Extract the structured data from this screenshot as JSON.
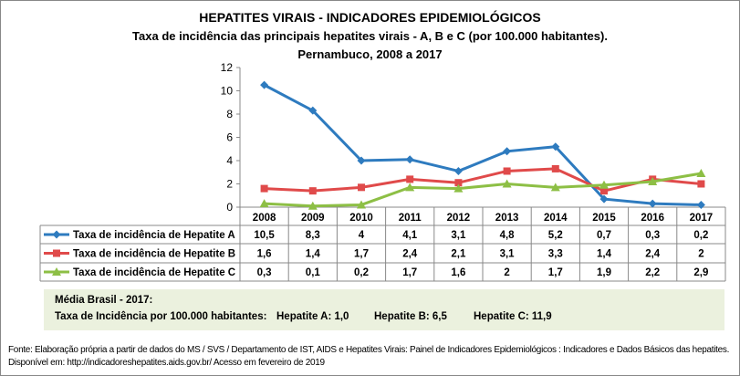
{
  "chart_data": {
    "type": "line",
    "title": "HEPATITES VIRAIS - INDICADORES EPIDEMIOLÓGICOS",
    "subtitle": "Taxa de incidência das principais hepatites virais - A, B e C (por 100.000 habitantes).",
    "subtitle2": "Pernambuco, 2008 a 2017",
    "categories": [
      "2008",
      "2009",
      "2010",
      "2011",
      "2012",
      "2013",
      "2014",
      "2015",
      "2016",
      "2017"
    ],
    "ylim": [
      0,
      12
    ],
    "yticks": [
      0,
      2,
      4,
      6,
      8,
      10,
      12
    ],
    "grid": false,
    "legend": "data-table",
    "series": [
      {
        "name": "Taxa de incidência de Hepatite A",
        "color": "#2e7bbf",
        "marker": "diamond",
        "values": [
          10.5,
          8.3,
          4,
          4.1,
          3.1,
          4.8,
          5.2,
          0.7,
          0.3,
          0.2
        ],
        "labels": [
          "10,5",
          "8,3",
          "4",
          "4,1",
          "3,1",
          "4,8",
          "5,2",
          "0,7",
          "0,3",
          "0,2"
        ]
      },
      {
        "name": "Taxa de incidência de Hepatite B",
        "color": "#e04a4a",
        "marker": "square",
        "values": [
          1.6,
          1.4,
          1.7,
          2.4,
          2.1,
          3.1,
          3.3,
          1.4,
          2.4,
          2
        ],
        "labels": [
          "1,6",
          "1,4",
          "1,7",
          "2,4",
          "2,1",
          "3,1",
          "3,3",
          "1,4",
          "2,4",
          "2"
        ]
      },
      {
        "name": "Taxa de incidência de Hepatite C",
        "color": "#8dbf45",
        "marker": "triangle",
        "values": [
          0.3,
          0.1,
          0.2,
          1.7,
          1.6,
          2,
          1.7,
          1.9,
          2.2,
          2.9
        ],
        "labels": [
          "0,3",
          "0,1",
          "0,2",
          "1,7",
          "1,6",
          "2",
          "1,7",
          "1,9",
          "2,2",
          "2,9"
        ]
      }
    ]
  },
  "note": {
    "line1": "Média Brasil - 2017:",
    "label": "Taxa de Incidência  por 100.000 habitantes:",
    "a": "Hepatite A: 1,0",
    "b": "Hepatite B: 6,5",
    "c": "Hepatite C: 11,9",
    "background": "#ebf1de"
  },
  "source": "Fonte: Elaboração própria a partir de dados do MS / SVS / Departamento de IST, AIDS e Hepatites Virais:  Painel de Indicadores Epidemiológicos : Indicadores e Dados Básicos das hepatites.  Disponível em: http://indicadoreshepatites.aids.gov.br/     Acesso em fevereiro de 2019"
}
